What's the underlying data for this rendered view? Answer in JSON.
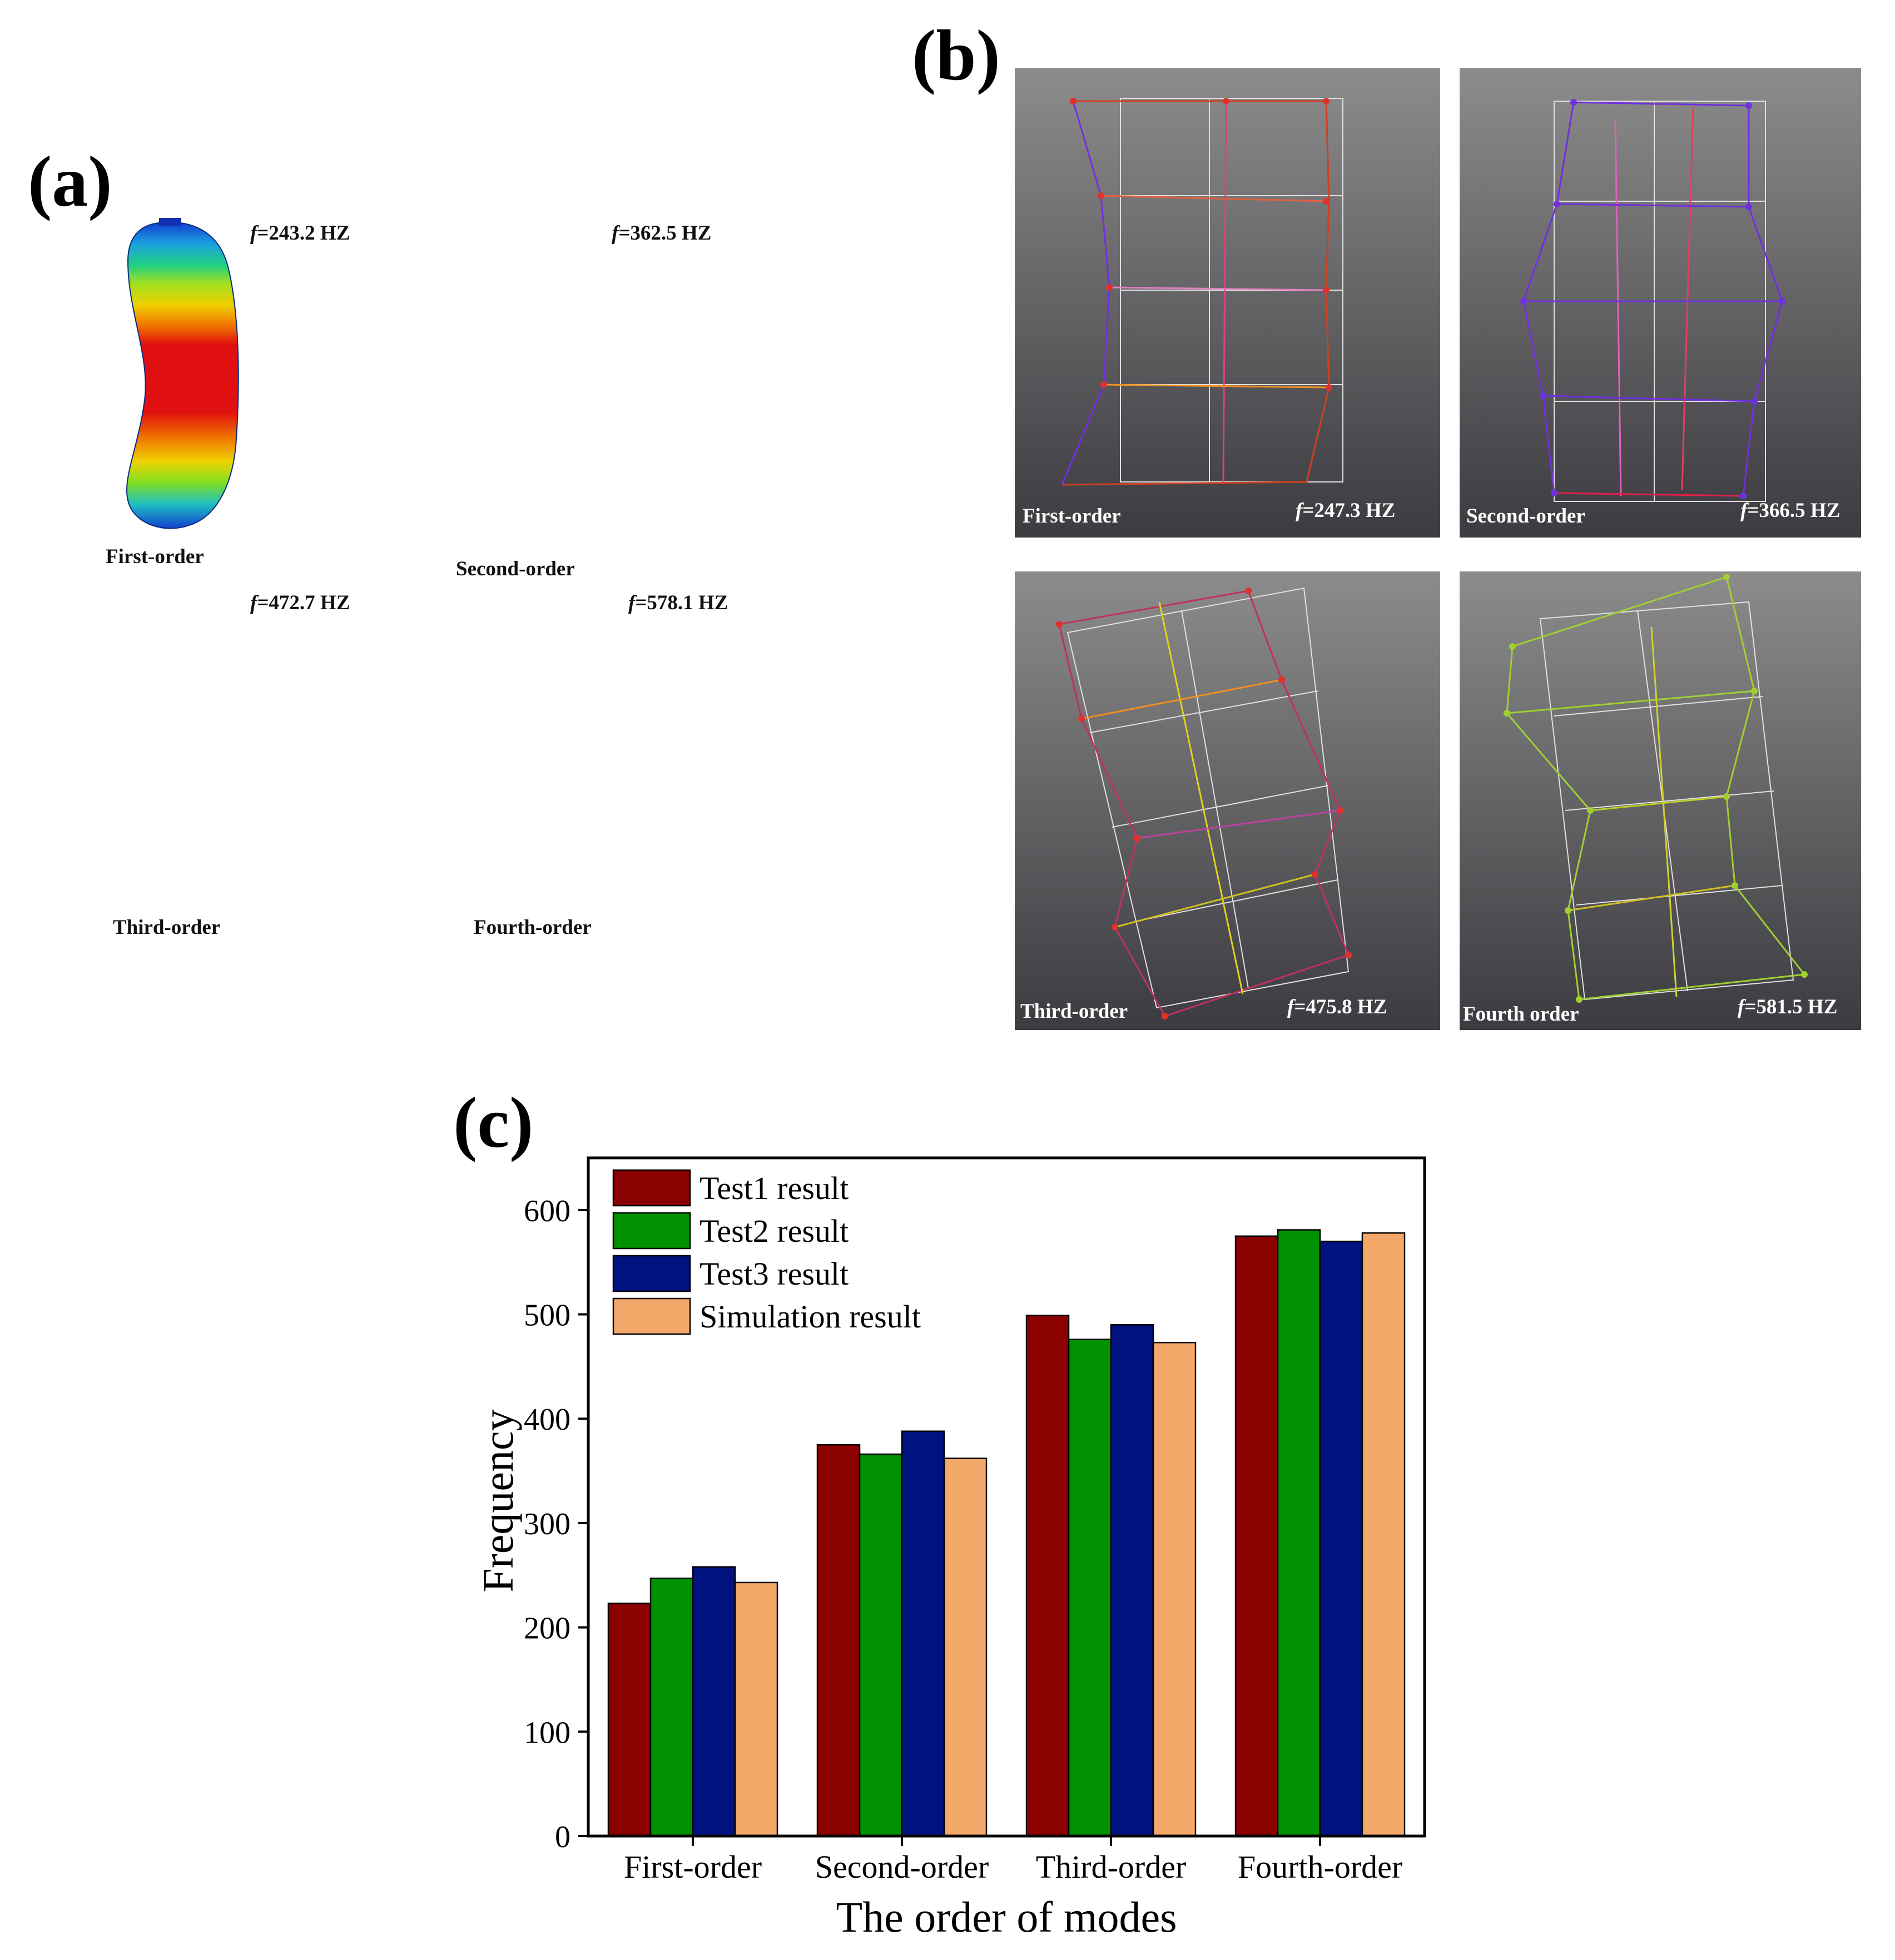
{
  "panels": {
    "a": {
      "letter": "(a)",
      "modes": [
        {
          "label": "First-order",
          "freq_prefix": "f",
          "freq_text": "=243.2 HZ"
        },
        {
          "label": "Second-order",
          "freq_prefix": "f",
          "freq_text": "=362.5 HZ"
        },
        {
          "label": "Third-order",
          "freq_prefix": "f",
          "freq_text": "=472.7 HZ"
        },
        {
          "label": "Fourth-order",
          "freq_prefix": "f",
          "freq_text": "=578.1 HZ"
        }
      ]
    },
    "b": {
      "letter": "(b)",
      "modes": [
        {
          "label": "First-order",
          "freq_prefix": "f",
          "freq_text": "=247.3 HZ"
        },
        {
          "label": "Second-order",
          "freq_prefix": "f",
          "freq_text": "=366.5 HZ"
        },
        {
          "label": "Third-order",
          "freq_prefix": "f",
          "freq_text": "=475.8 HZ"
        },
        {
          "label": "Fourth order",
          "freq_prefix": "f",
          "freq_text": "=581.5 HZ"
        }
      ]
    },
    "c": {
      "letter": "(c)"
    }
  },
  "chart_data": {
    "type": "bar",
    "title": "",
    "xlabel": "The order of modes",
    "ylabel": "Frequency",
    "categories": [
      "First-order",
      "Second-order",
      "Third-order",
      "Fourth-order"
    ],
    "ylim": [
      0,
      650
    ],
    "yticks": [
      0,
      100,
      200,
      300,
      400,
      500,
      600
    ],
    "grid": false,
    "legend_position": "top-left",
    "series": [
      {
        "name": "Test1 result",
        "color": "#8b0000",
        "values": [
          223,
          375,
          499,
          575
        ]
      },
      {
        "name": "Test2 result",
        "color": "#009100",
        "values": [
          247,
          366,
          476,
          581
        ]
      },
      {
        "name": "Test3 result",
        "color": "#00127f",
        "values": [
          258,
          388,
          490,
          570
        ]
      },
      {
        "name": "Simulation result",
        "color": "#f4a86a",
        "values": [
          243,
          362,
          473,
          578
        ]
      }
    ]
  }
}
